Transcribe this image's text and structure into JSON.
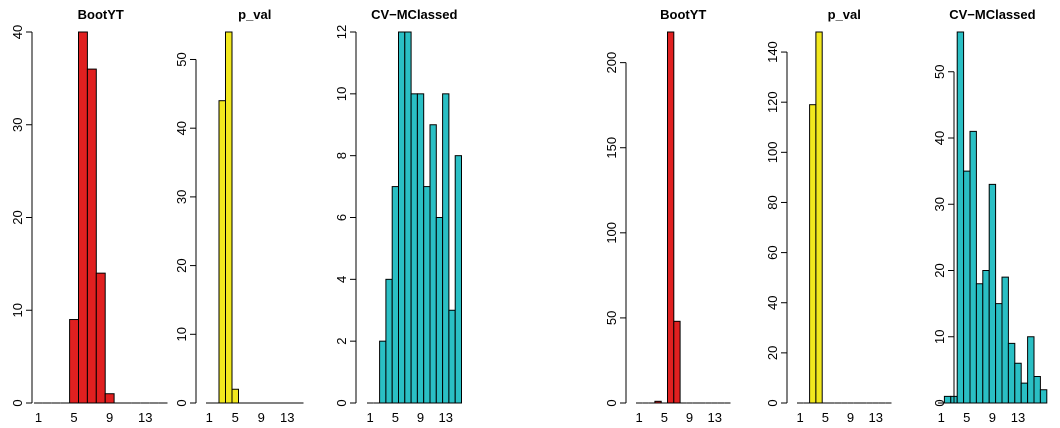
{
  "chart_data": [
    {
      "type": "bar",
      "title": "BootYT",
      "color": "#e02020",
      "x": [
        1,
        2,
        3,
        4,
        5,
        6,
        7,
        8,
        9,
        10,
        11,
        12,
        13,
        14,
        15
      ],
      "values": [
        0,
        0,
        0,
        0,
        9,
        40,
        36,
        14,
        1,
        0,
        0,
        0,
        0,
        0,
        0
      ],
      "ylim": [
        0,
        40
      ],
      "yticks": [
        0,
        10,
        20,
        30,
        40
      ],
      "xticks": [
        1,
        5,
        9,
        13
      ]
    },
    {
      "type": "bar",
      "title": "p_val",
      "color": "#f2e81e",
      "x": [
        1,
        2,
        3,
        4,
        5,
        6,
        7,
        8,
        9,
        10,
        11,
        12,
        13,
        14,
        15
      ],
      "values": [
        0,
        0,
        44,
        54,
        2,
        0,
        0,
        0,
        0,
        0,
        0,
        0,
        0,
        0,
        0
      ],
      "ylim": [
        0,
        54
      ],
      "yticks": [
        0,
        10,
        20,
        30,
        40,
        50
      ],
      "xticks": [
        1,
        5,
        9,
        13
      ]
    },
    {
      "type": "bar",
      "title": "CV−MClassed",
      "color": "#2abfc4",
      "x": [
        1,
        2,
        3,
        4,
        5,
        6,
        7,
        8,
        9,
        10,
        11,
        12,
        13,
        14,
        15
      ],
      "values": [
        0,
        0,
        2,
        4,
        7,
        12,
        12,
        10,
        10,
        7,
        9,
        6,
        10,
        3,
        8
      ],
      "ylim": [
        0,
        12
      ],
      "yticks": [
        0,
        2,
        4,
        6,
        8,
        10,
        12
      ],
      "xticks": [
        1,
        5,
        9,
        13
      ]
    },
    {
      "type": "bar",
      "title": "BootYT",
      "color": "#e02020",
      "x": [
        1,
        2,
        3,
        4,
        5,
        6,
        7,
        8,
        9,
        10,
        11,
        12,
        13,
        14,
        15
      ],
      "values": [
        0,
        0,
        0,
        1,
        0,
        218,
        48,
        0,
        0,
        0,
        0,
        0,
        0,
        0,
        0
      ],
      "ylim": [
        0,
        218
      ],
      "yticks": [
        0,
        50,
        100,
        150,
        200
      ],
      "xticks": [
        1,
        5,
        9,
        13
      ]
    },
    {
      "type": "bar",
      "title": "p_val",
      "color": "#f2e81e",
      "x": [
        1,
        2,
        3,
        4,
        5,
        6,
        7,
        8,
        9,
        10,
        11,
        12,
        13,
        14,
        15
      ],
      "values": [
        0,
        0,
        119,
        148,
        0,
        0,
        0,
        0,
        0,
        0,
        0,
        0,
        0,
        0,
        0
      ],
      "ylim": [
        0,
        148
      ],
      "yticks": [
        0,
        20,
        40,
        60,
        80,
        100,
        120,
        140
      ],
      "xticks": [
        1,
        5,
        9,
        13
      ]
    },
    {
      "type": "bar",
      "title": "CV−MClassed",
      "color": "#2abfc4",
      "x": [
        1,
        2,
        3,
        4,
        5,
        6,
        7,
        8,
        9,
        10,
        11,
        12,
        13,
        14,
        15,
        16,
        17
      ],
      "values": [
        0,
        1,
        1,
        56,
        35,
        41,
        18,
        20,
        33,
        15,
        19,
        9,
        6,
        3,
        10,
        4,
        2
      ],
      "ylim": [
        0,
        56
      ],
      "yticks": [
        0,
        10,
        20,
        30,
        40,
        50
      ],
      "xticks": [
        1,
        5,
        9,
        13
      ]
    }
  ]
}
